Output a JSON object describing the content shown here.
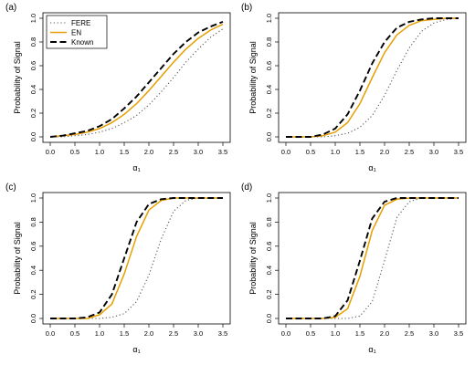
{
  "figure": {
    "colors": {
      "FERE": "#555555",
      "EN": "#E69F00",
      "Known": "#000000"
    }
  },
  "chart_data": [
    {
      "type": "line",
      "panel_label": "(a)",
      "xlabel": "α₁",
      "ylabel": "Probability of Signal",
      "xlim": [
        0,
        3.5
      ],
      "ylim": [
        0,
        1
      ],
      "x_ticks": [
        "0.0",
        "0.5",
        "1.0",
        "1.5",
        "2.0",
        "2.5",
        "3.0",
        "3.5"
      ],
      "y_ticks": [
        "0.0",
        "0.2",
        "0.4",
        "0.6",
        "0.8",
        "1.0"
      ],
      "legend": {
        "position": "top-left",
        "entries": [
          "FERE",
          "EN",
          "Known"
        ]
      },
      "x": [
        0,
        0.25,
        0.5,
        0.75,
        1.0,
        1.25,
        1.5,
        1.75,
        2.0,
        2.25,
        2.5,
        2.75,
        3.0,
        3.25,
        3.5
      ],
      "series": [
        {
          "name": "FERE",
          "values": [
            0.0,
            0.0,
            0.01,
            0.02,
            0.04,
            0.07,
            0.12,
            0.18,
            0.27,
            0.38,
            0.5,
            0.63,
            0.74,
            0.84,
            0.91
          ]
        },
        {
          "name": "EN",
          "values": [
            0.0,
            0.01,
            0.02,
            0.04,
            0.07,
            0.12,
            0.19,
            0.28,
            0.39,
            0.51,
            0.63,
            0.74,
            0.83,
            0.9,
            0.95
          ]
        },
        {
          "name": "Known",
          "values": [
            0.0,
            0.01,
            0.03,
            0.05,
            0.09,
            0.15,
            0.24,
            0.34,
            0.46,
            0.58,
            0.7,
            0.8,
            0.88,
            0.93,
            0.97
          ]
        }
      ]
    },
    {
      "type": "line",
      "panel_label": "(b)",
      "xlabel": "α₁",
      "ylabel": "Probability of Signal",
      "xlim": [
        0,
        3.5
      ],
      "ylim": [
        0,
        1
      ],
      "x_ticks": [
        "0.0",
        "0.5",
        "1.0",
        "1.5",
        "2.0",
        "2.5",
        "3.0",
        "3.5"
      ],
      "y_ticks": [
        "0.0",
        "0.2",
        "0.4",
        "0.6",
        "0.8",
        "1.0"
      ],
      "x": [
        0,
        0.25,
        0.5,
        0.75,
        1.0,
        1.25,
        1.5,
        1.75,
        2.0,
        2.25,
        2.5,
        2.75,
        3.0,
        3.25,
        3.5
      ],
      "series": [
        {
          "name": "FERE",
          "values": [
            0.0,
            0.0,
            0.0,
            0.0,
            0.01,
            0.03,
            0.08,
            0.18,
            0.35,
            0.56,
            0.75,
            0.89,
            0.96,
            0.99,
            1.0
          ]
        },
        {
          "name": "EN",
          "values": [
            0.0,
            0.0,
            0.0,
            0.01,
            0.04,
            0.12,
            0.28,
            0.5,
            0.71,
            0.86,
            0.94,
            0.98,
            0.99,
            1.0,
            1.0
          ]
        },
        {
          "name": "Known",
          "values": [
            0.0,
            0.0,
            0.0,
            0.02,
            0.07,
            0.19,
            0.39,
            0.62,
            0.8,
            0.92,
            0.97,
            0.99,
            1.0,
            1.0,
            1.0
          ]
        }
      ]
    },
    {
      "type": "line",
      "panel_label": "(c)",
      "xlabel": "α₁",
      "ylabel": "Probability of Signal",
      "xlim": [
        0,
        3.5
      ],
      "ylim": [
        0,
        1
      ],
      "x_ticks": [
        "0.0",
        "0.5",
        "1.0",
        "1.5",
        "2.0",
        "2.5",
        "3.0",
        "3.5"
      ],
      "y_ticks": [
        "0.0",
        "0.2",
        "0.4",
        "0.6",
        "0.8",
        "1.0"
      ],
      "x": [
        0,
        0.25,
        0.5,
        0.75,
        1.0,
        1.25,
        1.5,
        1.75,
        2.0,
        2.25,
        2.5,
        2.75,
        3.0,
        3.25,
        3.5
      ],
      "series": [
        {
          "name": "FERE",
          "values": [
            0.0,
            0.0,
            0.0,
            0.0,
            0.0,
            0.01,
            0.04,
            0.14,
            0.36,
            0.66,
            0.89,
            0.98,
            1.0,
            1.0,
            1.0
          ]
        },
        {
          "name": "EN",
          "values": [
            0.0,
            0.0,
            0.0,
            0.0,
            0.03,
            0.12,
            0.37,
            0.68,
            0.9,
            0.98,
            1.0,
            1.0,
            1.0,
            1.0,
            1.0
          ]
        },
        {
          "name": "Known",
          "values": [
            0.0,
            0.0,
            0.0,
            0.01,
            0.05,
            0.2,
            0.5,
            0.8,
            0.95,
            0.99,
            1.0,
            1.0,
            1.0,
            1.0,
            1.0
          ]
        }
      ]
    },
    {
      "type": "line",
      "panel_label": "(d)",
      "xlabel": "α₁",
      "ylabel": "Probability of Signal",
      "xlim": [
        0,
        3.5
      ],
      "ylim": [
        0,
        1
      ],
      "x_ticks": [
        "0.0",
        "0.5",
        "1.0",
        "1.5",
        "2.0",
        "2.5",
        "3.0",
        "3.5"
      ],
      "y_ticks": [
        "0.0",
        "0.2",
        "0.4",
        "0.6",
        "0.8",
        "1.0"
      ],
      "x": [
        0,
        0.25,
        0.5,
        0.75,
        1.0,
        1.25,
        1.5,
        1.75,
        2.0,
        2.25,
        2.5,
        2.75,
        3.0,
        3.25,
        3.5
      ],
      "series": [
        {
          "name": "FERE",
          "values": [
            0.0,
            0.0,
            0.0,
            0.0,
            0.0,
            0.0,
            0.02,
            0.14,
            0.48,
            0.84,
            0.97,
            1.0,
            1.0,
            1.0,
            1.0
          ]
        },
        {
          "name": "EN",
          "values": [
            0.0,
            0.0,
            0.0,
            0.0,
            0.01,
            0.08,
            0.35,
            0.73,
            0.94,
            0.99,
            1.0,
            1.0,
            1.0,
            1.0,
            1.0
          ]
        },
        {
          "name": "Known",
          "values": [
            0.0,
            0.0,
            0.0,
            0.0,
            0.02,
            0.15,
            0.48,
            0.83,
            0.97,
            1.0,
            1.0,
            1.0,
            1.0,
            1.0,
            1.0
          ]
        }
      ]
    }
  ]
}
